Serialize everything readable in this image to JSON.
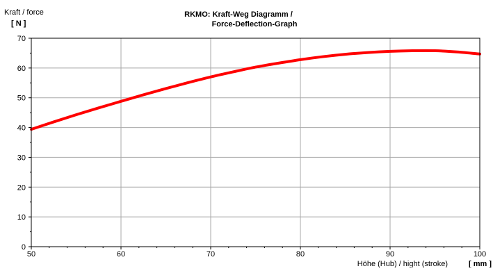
{
  "chart_data": {
    "type": "line",
    "title_line1": "RKMO: Kraft-Weg Diagramm /",
    "title_line2": "Force-Deflection-Graph",
    "ylabel": "Kraft / force",
    "ylabel_unit": "[ N ]",
    "xlabel": "Höhe (Hub) / hight (stroke)",
    "xlabel_unit": "[ mm ]",
    "xlim": [
      50,
      100
    ],
    "ylim": [
      0,
      70
    ],
    "x_ticks": [
      50,
      60,
      70,
      80,
      90,
      100
    ],
    "y_ticks": [
      0,
      10,
      20,
      30,
      40,
      50,
      60,
      70
    ],
    "grid": true,
    "line_color": "#ff0000",
    "series": [
      {
        "x": [
          50,
          52.5,
          55,
          57.5,
          60,
          62.5,
          65,
          67.5,
          70,
          72.5,
          75,
          77.5,
          80,
          82.5,
          85,
          87.5,
          90,
          92.5,
          95,
          97.5,
          100
        ],
        "y": [
          39.4,
          41.9,
          44.3,
          46.6,
          48.8,
          51.0,
          53.1,
          55.1,
          57.0,
          58.7,
          60.3,
          61.6,
          62.8,
          63.8,
          64.6,
          65.2,
          65.6,
          65.8,
          65.8,
          65.4,
          64.7
        ]
      }
    ]
  }
}
